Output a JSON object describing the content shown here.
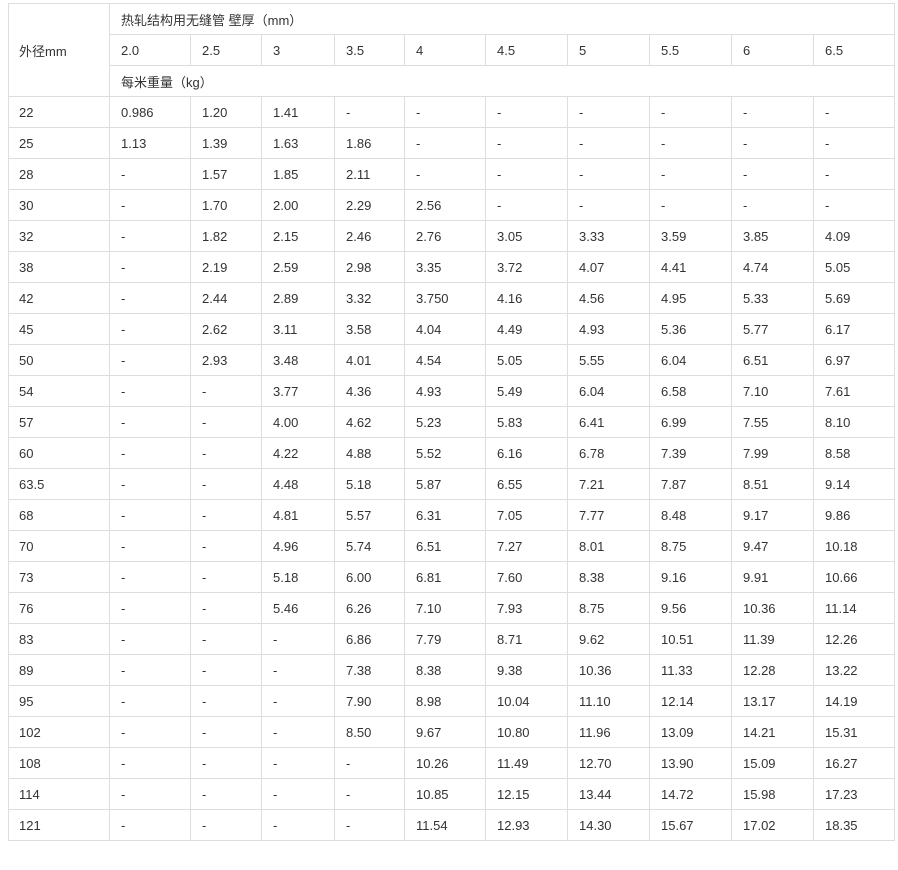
{
  "table": {
    "row_header": "外径mm",
    "group_header": "热轧结构用无缝管 壁厚（mm）",
    "unit_header": "每米重量（kg）",
    "thicknesses": [
      "2.0",
      "2.5",
      "3",
      "3.5",
      "4",
      "4.5",
      "5",
      "5.5",
      "6",
      "6.5"
    ],
    "rows": [
      [
        "22",
        "0.986",
        "1.20",
        "1.41",
        "-",
        "-",
        "-",
        "-",
        "-",
        "-",
        "-"
      ],
      [
        "25",
        "1.13",
        "1.39",
        "1.63",
        "1.86",
        "-",
        "-",
        "-",
        "-",
        "-",
        "-"
      ],
      [
        "28",
        "-",
        "1.57",
        "1.85",
        "2.11",
        "-",
        "-",
        "-",
        "-",
        "-",
        "-"
      ],
      [
        "30",
        "-",
        "1.70",
        "2.00",
        "2.29",
        "2.56",
        "-",
        "-",
        "-",
        "-",
        "-"
      ],
      [
        "32",
        "-",
        "1.82",
        "2.15",
        "2.46",
        "2.76",
        "3.05",
        "3.33",
        "3.59",
        "3.85",
        "4.09"
      ],
      [
        "38",
        "-",
        "2.19",
        "2.59",
        "2.98",
        "3.35",
        "3.72",
        "4.07",
        "4.41",
        "4.74",
        "5.05"
      ],
      [
        "42",
        "-",
        "2.44",
        "2.89",
        "3.32",
        "3.750",
        "4.16",
        "4.56",
        "4.95",
        "5.33",
        "5.69"
      ],
      [
        "45",
        "-",
        "2.62",
        "3.11",
        "3.58",
        "4.04",
        "4.49",
        "4.93",
        "5.36",
        "5.77",
        "6.17"
      ],
      [
        "50",
        "-",
        "2.93",
        "3.48",
        "4.01",
        "4.54",
        "5.05",
        "5.55",
        "6.04",
        "6.51",
        "6.97"
      ],
      [
        "54",
        "-",
        "-",
        "3.77",
        "4.36",
        "4.93",
        "5.49",
        "6.04",
        "6.58",
        "7.10",
        "7.61"
      ],
      [
        "57",
        "-",
        "-",
        "4.00",
        "4.62",
        "5.23",
        "5.83",
        "6.41",
        "6.99",
        "7.55",
        "8.10"
      ],
      [
        "60",
        "-",
        "-",
        "4.22",
        "4.88",
        "5.52",
        "6.16",
        "6.78",
        "7.39",
        "7.99",
        "8.58"
      ],
      [
        "63.5",
        "-",
        "-",
        "4.48",
        "5.18",
        "5.87",
        "6.55",
        "7.21",
        "7.87",
        "8.51",
        "9.14"
      ],
      [
        "68",
        "-",
        "-",
        "4.81",
        "5.57",
        "6.31",
        "7.05",
        "7.77",
        "8.48",
        "9.17",
        "9.86"
      ],
      [
        "70",
        "-",
        "-",
        "4.96",
        "5.74",
        "6.51",
        "7.27",
        "8.01",
        "8.75",
        "9.47",
        "10.18"
      ],
      [
        "73",
        "-",
        "-",
        "5.18",
        "6.00",
        "6.81",
        "7.60",
        "8.38",
        "9.16",
        "9.91",
        "10.66"
      ],
      [
        "76",
        "-",
        "-",
        "5.46",
        "6.26",
        "7.10",
        "7.93",
        "8.75",
        "9.56",
        "10.36",
        "11.14"
      ],
      [
        "83",
        "-",
        "-",
        "-",
        "6.86",
        "7.79",
        "8.71",
        "9.62",
        "10.51",
        "11.39",
        "12.26"
      ],
      [
        "89",
        "-",
        "-",
        "-",
        "7.38",
        "8.38",
        "9.38",
        "10.36",
        "11.33",
        "12.28",
        "13.22"
      ],
      [
        "95",
        "-",
        "-",
        "-",
        "7.90",
        "8.98",
        "10.04",
        "11.10",
        "12.14",
        "13.17",
        "14.19"
      ],
      [
        "102",
        "-",
        "-",
        "-",
        "8.50",
        "9.67",
        "10.80",
        "11.96",
        "13.09",
        "14.21",
        "15.31"
      ],
      [
        "108",
        "-",
        "-",
        "-",
        "-",
        "10.26",
        "11.49",
        "12.70",
        "13.90",
        "15.09",
        "16.27"
      ],
      [
        "114",
        "-",
        "-",
        "-",
        "-",
        "10.85",
        "12.15",
        "13.44",
        "14.72",
        "15.98",
        "17.23"
      ],
      [
        "121",
        "-",
        "-",
        "-",
        "-",
        "11.54",
        "12.93",
        "14.30",
        "15.67",
        "17.02",
        "18.35"
      ]
    ]
  }
}
